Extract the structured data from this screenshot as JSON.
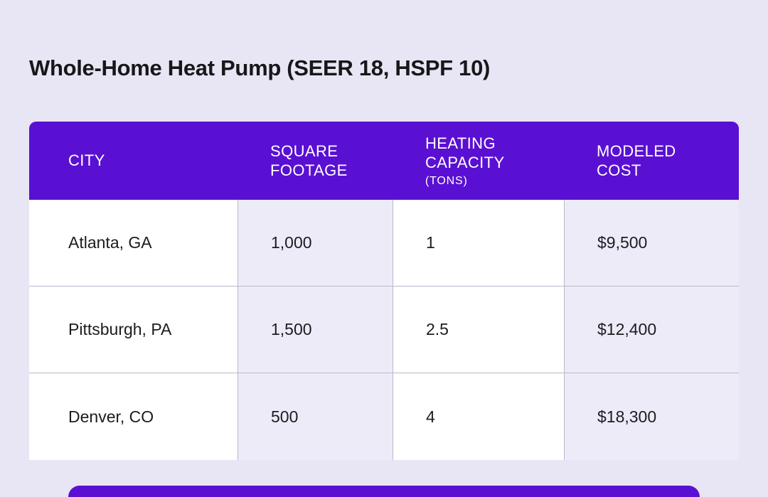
{
  "page": {
    "title": "Whole-Home Heat Pump (SEER 18, HSPF 10)",
    "colors": {
      "background": "#e8e5f4",
      "accent_purple": "#5a10d2",
      "tint_lavender": "#edebf8",
      "header_text": "#ffffff",
      "body_text": "#1c1c1e",
      "border": "#bab7c9"
    }
  },
  "table": {
    "columns": [
      {
        "label": "CITY",
        "sub": ""
      },
      {
        "label": "SQUARE FOOTAGE",
        "sub": ""
      },
      {
        "label": "HEATING CAPACITY",
        "sub": "(TONS)"
      },
      {
        "label": "MODELED COST",
        "sub": ""
      }
    ]
  },
  "chart_data": {
    "type": "table",
    "title": "Whole-Home Heat Pump (SEER 18, HSPF 10)",
    "columns": [
      "CITY",
      "SQUARE FOOTAGE",
      "HEATING CAPACITY (TONS)",
      "MODELED COST"
    ],
    "rows": [
      [
        "Atlanta, GA",
        "1,000",
        "1",
        "$9,500"
      ],
      [
        "Pittsburgh, PA",
        "1,500",
        "2.5",
        "$12,400"
      ],
      [
        "Denver, CO",
        "500",
        "4",
        "$18,300"
      ]
    ]
  }
}
